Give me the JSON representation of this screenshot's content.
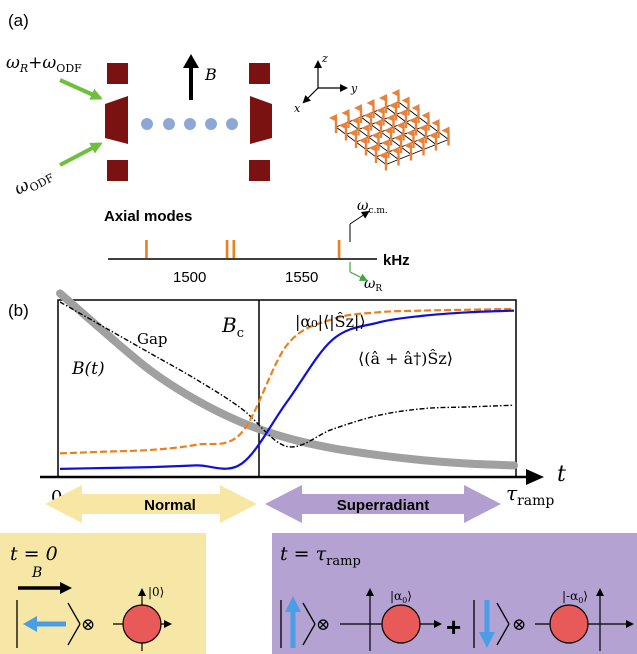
{
  "panel_a": {
    "label": "(a)",
    "beam_upper": "ωR + ωODF",
    "beam_upper_parts": {
      "main": "ω",
      "sub1": "R",
      "plus": "+",
      "main2": "ω",
      "sub2": "ODF"
    },
    "beam_lower_parts": {
      "main": "ω",
      "sub": "ODF"
    },
    "b_field_label": "B",
    "axes": {
      "z": "z",
      "y": "y",
      "x": "x"
    },
    "axial_title": "Axial modes",
    "axis_unit": "kHz",
    "axis_ticks": [
      "1500",
      "1550"
    ],
    "mode_positions_khz": [
      1481,
      1517,
      1520,
      1567
    ],
    "com_label_parts": {
      "main": "ω",
      "sub": "c.m."
    },
    "omega_r_label_parts": {
      "main": "ω",
      "sub": "R"
    },
    "colors": {
      "electrode": "#7a1212",
      "beam": "#6dbf3c",
      "ion": "#8ea8d6",
      "spin": "#e8823a",
      "mode": "#e8801e"
    }
  },
  "panel_b": {
    "label": "(b)",
    "bc_label": {
      "main": "B",
      "sub": "c"
    },
    "gap_label": "Gap",
    "bt_label": "B(t)",
    "curve_label_sz": "|α₀|⟨|Ŝz|⟩",
    "curve_label_corr": "⟨(â + â†)Ŝz⟩",
    "t_label": "t",
    "zero_label": "0",
    "tau_label": {
      "main": "τ",
      "sub": "ramp"
    },
    "normal_label": "Normal",
    "superradiant_label": "Superradiant",
    "colors": {
      "gap": "#000000",
      "bt": "#a0a0a0",
      "sz": "#e8821e",
      "corr": "#1010d8",
      "normal": "#f8e7a4",
      "super": "#b29fcf"
    }
  },
  "bottom_left": {
    "t_label": "t = 0",
    "b_label": "B",
    "ket_label": "|0⟩",
    "otimes": "⊗",
    "bg": "#f7e7a6"
  },
  "bottom_right": {
    "t_label": {
      "main": "t = τ",
      "sub": "ramp"
    },
    "ket_alpha": {
      "main": "|α",
      "sub": "0",
      "end": "⟩"
    },
    "ket_minus_alpha": {
      "main": "|-α",
      "sub": "0",
      "end": "⟩"
    },
    "otimes": "⊗",
    "plus": "+",
    "bg": "#b4a2d2"
  },
  "chart_data": {
    "type": "line",
    "title": "",
    "xlabel": "t",
    "ylabel": "",
    "x": [
      0,
      0.1,
      0.2,
      0.3,
      0.4,
      0.5,
      0.6,
      0.7,
      0.8,
      0.9,
      1.0
    ],
    "series": [
      {
        "name": "Gap",
        "values": [
          1.0,
          0.85,
          0.7,
          0.55,
          0.38,
          0.16,
          0.26,
          0.34,
          0.38,
          0.39,
          0.4
        ]
      },
      {
        "name": "B(t)",
        "values": [
          1.05,
          0.82,
          0.6,
          0.43,
          0.3,
          0.21,
          0.15,
          0.11,
          0.08,
          0.06,
          0.05
        ]
      },
      {
        "name": "|α₀|⟨|Ŝz|⟩",
        "values": [
          0.12,
          0.13,
          0.14,
          0.17,
          0.24,
          0.75,
          0.9,
          0.94,
          0.95,
          0.955,
          0.96
        ]
      },
      {
        "name": "⟨(â + â†)Ŝz⟩",
        "values": [
          0.03,
          0.035,
          0.04,
          0.05,
          0.06,
          0.42,
          0.78,
          0.88,
          0.92,
          0.94,
          0.95
        ]
      }
    ]
  }
}
